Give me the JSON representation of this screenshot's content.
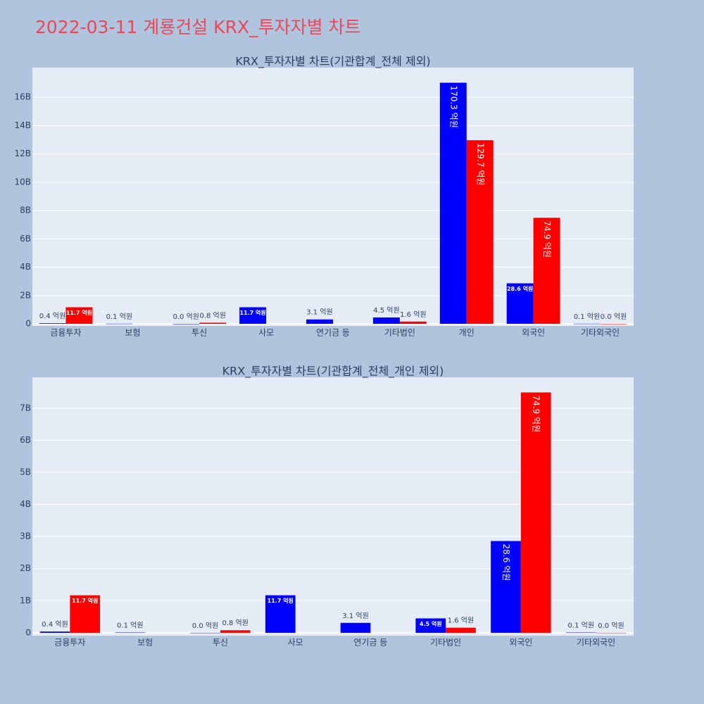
{
  "title": "2022-03-11 계룡건설 KRX_투자자별 차트",
  "chart_data": [
    {
      "type": "bar",
      "title": "KRX_투자자별 차트(기관합계_전체 제외)",
      "categories": [
        "금융투자",
        "보험",
        "투신",
        "사모",
        "연기금 등",
        "기타법인",
        "개인",
        "외국인",
        "기타외국인"
      ],
      "series": [
        {
          "color": "#0000ff",
          "values": [
            40000000,
            10000000,
            0,
            1170000000,
            310000000,
            450000000,
            17030000000,
            2860000000,
            10000000
          ],
          "value_labels": [
            "0.4 억원",
            "0.1 억원",
            "0.0 억원",
            "11.7 억원",
            "3.1 억원",
            "4.5 억원",
            "170.3 억원",
            "28.6 억원",
            "0.1 억원"
          ]
        },
        {
          "color": "#ff0000",
          "values": [
            1170000000,
            null,
            80000000,
            null,
            null,
            160000000,
            12970000000,
            7490000000,
            0
          ],
          "value_labels": [
            "11.7 억원",
            null,
            "0.8 억원",
            null,
            null,
            "1.6 억원",
            "129.7 억원",
            "74.9 억원",
            "0.0 억원"
          ]
        }
      ],
      "ylim": [
        -150000000,
        18100000000
      ],
      "yticks": [
        0,
        {
          "value": 2000000000,
          "label": "2B"
        },
        {
          "value": 4000000000,
          "label": "4B"
        },
        {
          "value": 6000000000,
          "label": "6B"
        },
        {
          "value": 8000000000,
          "label": "8B"
        },
        {
          "value": 10000000000,
          "label": "10B"
        },
        {
          "value": 12000000000,
          "label": "12B"
        },
        {
          "value": 14000000000,
          "label": "14B"
        },
        {
          "value": 16000000000,
          "label": "16B"
        }
      ],
      "grid": true
    },
    {
      "type": "bar",
      "title": "KRX_투자자별 차트(기관합계_전체_개인 제외)",
      "categories": [
        "금융투자",
        "보험",
        "투신",
        "사모",
        "연기금 등",
        "기타법인",
        "외국인",
        "기타외국인"
      ],
      "series": [
        {
          "color": "#0000ff",
          "values": [
            40000000,
            10000000,
            0,
            1170000000,
            310000000,
            450000000,
            2860000000,
            10000000
          ],
          "value_labels": [
            "0.4 억원",
            "0.1 억원",
            "0.0 억원",
            "11.7 억원",
            "3.1 억원",
            "4.5 억원",
            "28.6 억원",
            "0.1 억원"
          ]
        },
        {
          "color": "#ff0000",
          "values": [
            1170000000,
            null,
            80000000,
            null,
            null,
            160000000,
            7490000000,
            0
          ],
          "value_labels": [
            "11.7 억원",
            null,
            "0.8 억원",
            null,
            null,
            "1.6 억원",
            "74.9 억원",
            "0.0 억원"
          ]
        }
      ],
      "ylim": [
        -90000000,
        7960000000
      ],
      "yticks": [
        0,
        {
          "value": 1000000000,
          "label": "1B"
        },
        {
          "value": 2000000000,
          "label": "2B"
        },
        {
          "value": 3000000000,
          "label": "3B"
        },
        {
          "value": 4000000000,
          "label": "4B"
        },
        {
          "value": 5000000000,
          "label": "5B"
        },
        {
          "value": 6000000000,
          "label": "6B"
        },
        {
          "value": 7000000000,
          "label": "7B"
        }
      ],
      "grid": true
    }
  ]
}
